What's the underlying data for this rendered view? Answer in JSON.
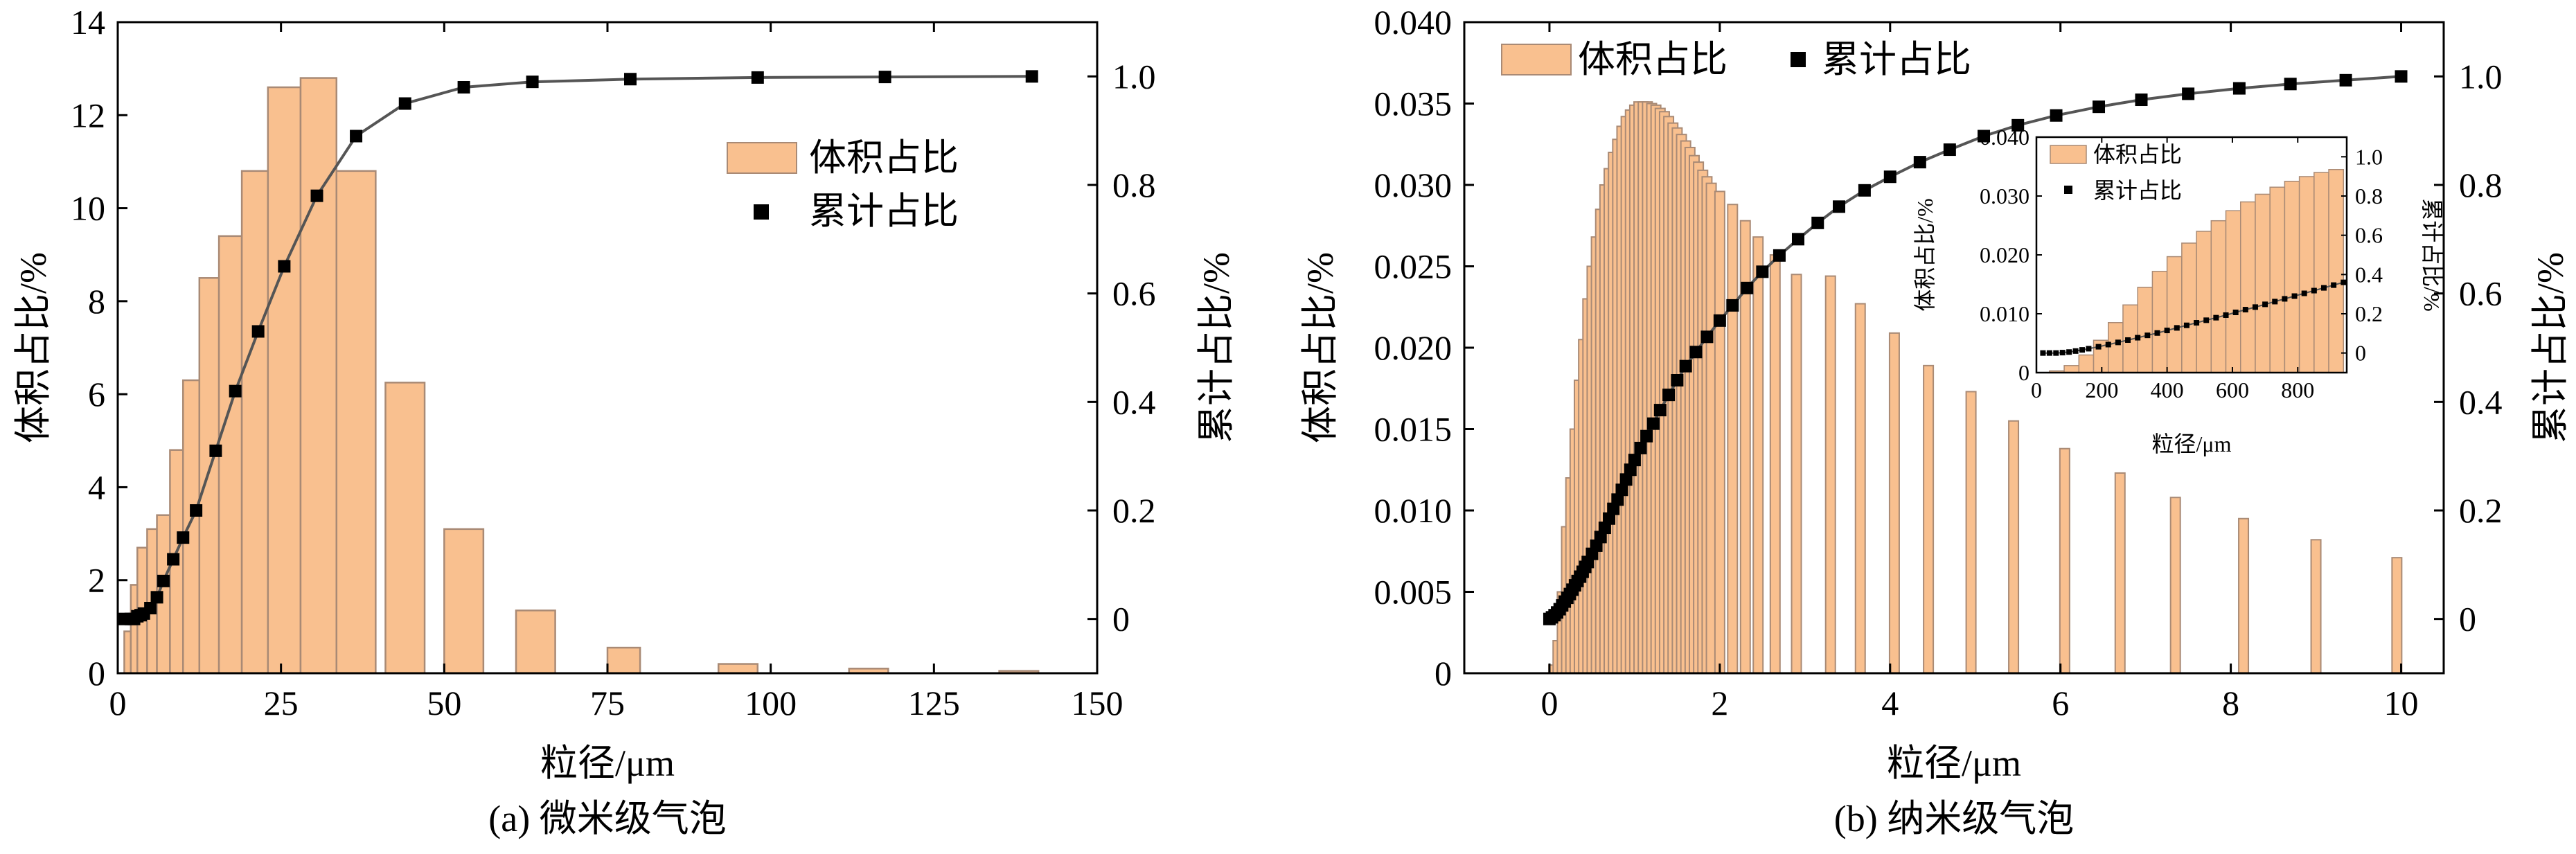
{
  "colors": {
    "bar_fill": "#f9c08f",
    "bar_stroke": "#a98a75",
    "line": "#555555",
    "marker": "#000000",
    "axis": "#000000"
  },
  "chart_data": [
    {
      "type": "bar",
      "caption": "(a) 微米级气泡",
      "xlabel": "粒径/μm",
      "ylabel": "体积占比/%",
      "y2label": "累计占比/%",
      "xlim": [
        0,
        150
      ],
      "ylim": [
        0,
        14
      ],
      "y2lim": [
        -0.1,
        1.1
      ],
      "xticks": [
        "0",
        "25",
        "50",
        "75",
        "100",
        "125",
        "150"
      ],
      "yticks": [
        "0",
        "2",
        "4",
        "6",
        "8",
        "10",
        "12",
        "14"
      ],
      "y2ticks": [
        "0",
        "0.2",
        "0.4",
        "0.6",
        "0.8",
        "1.0"
      ],
      "legend": {
        "bars": "体积占比",
        "markers": "累计占比"
      },
      "legend_position": "center-right",
      "bars": [
        {
          "x0": 1.0,
          "x1": 2.0,
          "value": 0.9
        },
        {
          "x0": 2.0,
          "x1": 3.0,
          "value": 1.9
        },
        {
          "x0": 3.0,
          "x1": 4.5,
          "value": 2.7
        },
        {
          "x0": 4.5,
          "x1": 6.0,
          "value": 3.1
        },
        {
          "x0": 6.0,
          "x1": 8.0,
          "value": 3.4
        },
        {
          "x0": 8.0,
          "x1": 10.0,
          "value": 4.8
        },
        {
          "x0": 10.0,
          "x1": 12.5,
          "value": 6.3
        },
        {
          "x0": 12.5,
          "x1": 15.5,
          "value": 8.5
        },
        {
          "x0": 15.5,
          "x1": 19.0,
          "value": 9.4
        },
        {
          "x0": 19.0,
          "x1": 23.0,
          "value": 10.8
        },
        {
          "x0": 23.0,
          "x1": 28.0,
          "value": 12.6
        },
        {
          "x0": 28.0,
          "x1": 33.5,
          "value": 12.8
        },
        {
          "x0": 33.5,
          "x1": 39.5,
          "value": 10.8
        },
        {
          "x0": 41.0,
          "x1": 47.0,
          "value": 6.25
        },
        {
          "x0": 50.0,
          "x1": 56.0,
          "value": 3.1
        },
        {
          "x0": 61.0,
          "x1": 67.0,
          "value": 1.35
        },
        {
          "x0": 75.0,
          "x1": 80.0,
          "value": 0.55
        },
        {
          "x0": 92.0,
          "x1": 98.0,
          "value": 0.2
        },
        {
          "x0": 112.0,
          "x1": 118.0,
          "value": 0.1
        },
        {
          "x0": 135.0,
          "x1": 141.0,
          "value": 0.05
        }
      ],
      "cumulative": {
        "x": [
          1.0,
          2.0,
          2.5,
          3.0,
          3.5,
          4.0,
          5.0,
          6.0,
          7.0,
          8.5,
          10.0,
          12.0,
          15.0,
          18.0,
          21.5,
          25.5,
          30.5,
          36.5,
          44.0,
          53.0,
          63.5,
          78.5,
          98.0,
          117.5,
          140.0
        ],
        "y": [
          0.0,
          0.0,
          0.0,
          0.005,
          0.007,
          0.01,
          0.02,
          0.04,
          0.07,
          0.11,
          0.15,
          0.2,
          0.31,
          0.42,
          0.53,
          0.65,
          0.78,
          0.89,
          0.95,
          0.98,
          0.99,
          0.995,
          0.998,
          0.999,
          1.0
        ]
      }
    },
    {
      "type": "bar",
      "caption": "(b) 纳米级气泡",
      "xlabel": "粒径/μm",
      "ylabel": "体积占比/%",
      "y2label": "累计占比/%",
      "xlim": [
        -1,
        10.5
      ],
      "ylim": [
        0,
        0.04
      ],
      "y2lim": [
        -0.1,
        1.1
      ],
      "xticks": [
        "0",
        "2",
        "4",
        "6",
        "8",
        "10"
      ],
      "yticks": [
        "0",
        "0.005",
        "0.010",
        "0.015",
        "0.020",
        "0.025",
        "0.030",
        "0.035",
        "0.040"
      ],
      "y2ticks": [
        "0",
        "0.2",
        "0.4",
        "0.6",
        "0.8",
        "1.0"
      ],
      "legend": {
        "bars": "体积占比",
        "markers": "累计占比"
      },
      "legend_position": "top-left",
      "bars": [
        {
          "x": 0.05,
          "value": 0.0005
        },
        {
          "x": 0.1,
          "value": 0.002
        },
        {
          "x": 0.15,
          "value": 0.005
        },
        {
          "x": 0.2,
          "value": 0.009
        },
        {
          "x": 0.25,
          "value": 0.012
        },
        {
          "x": 0.3,
          "value": 0.015
        },
        {
          "x": 0.35,
          "value": 0.018
        },
        {
          "x": 0.4,
          "value": 0.0205
        },
        {
          "x": 0.45,
          "value": 0.023
        },
        {
          "x": 0.5,
          "value": 0.025
        },
        {
          "x": 0.55,
          "value": 0.0268
        },
        {
          "x": 0.6,
          "value": 0.0285
        },
        {
          "x": 0.65,
          "value": 0.03
        },
        {
          "x": 0.7,
          "value": 0.031
        },
        {
          "x": 0.75,
          "value": 0.032
        },
        {
          "x": 0.8,
          "value": 0.0328
        },
        {
          "x": 0.85,
          "value": 0.0336
        },
        {
          "x": 0.9,
          "value": 0.0342
        },
        {
          "x": 0.95,
          "value": 0.0346
        },
        {
          "x": 1.0,
          "value": 0.0349
        },
        {
          "x": 1.05,
          "value": 0.0351
        },
        {
          "x": 1.1,
          "value": 0.0351
        },
        {
          "x": 1.15,
          "value": 0.0351
        },
        {
          "x": 1.2,
          "value": 0.035
        },
        {
          "x": 1.25,
          "value": 0.0349
        },
        {
          "x": 1.3,
          "value": 0.0347
        },
        {
          "x": 1.35,
          "value": 0.0345
        },
        {
          "x": 1.4,
          "value": 0.0342
        },
        {
          "x": 1.45,
          "value": 0.0338
        },
        {
          "x": 1.5,
          "value": 0.0335
        },
        {
          "x": 1.55,
          "value": 0.0331
        },
        {
          "x": 1.6,
          "value": 0.0327
        },
        {
          "x": 1.65,
          "value": 0.0323
        },
        {
          "x": 1.7,
          "value": 0.0318
        },
        {
          "x": 1.75,
          "value": 0.0314
        },
        {
          "x": 1.8,
          "value": 0.0309
        },
        {
          "x": 1.85,
          "value": 0.0305
        },
        {
          "x": 1.9,
          "value": 0.0301
        },
        {
          "x": 2.0,
          "value": 0.0296
        },
        {
          "x": 2.15,
          "value": 0.0288
        },
        {
          "x": 2.3,
          "value": 0.0278
        },
        {
          "x": 2.45,
          "value": 0.0268
        },
        {
          "x": 2.65,
          "value": 0.0257
        },
        {
          "x": 2.9,
          "value": 0.0245
        },
        {
          "x": 3.3,
          "value": 0.0244
        },
        {
          "x": 3.65,
          "value": 0.0227
        },
        {
          "x": 4.05,
          "value": 0.0209
        },
        {
          "x": 4.45,
          "value": 0.0189
        },
        {
          "x": 4.95,
          "value": 0.0173
        },
        {
          "x": 5.45,
          "value": 0.0155
        },
        {
          "x": 6.05,
          "value": 0.0138
        },
        {
          "x": 6.7,
          "value": 0.0123
        },
        {
          "x": 7.35,
          "value": 0.0108
        },
        {
          "x": 8.15,
          "value": 0.0095
        },
        {
          "x": 9.0,
          "value": 0.0082
        },
        {
          "x": 9.95,
          "value": 0.0071
        }
      ],
      "cumulative": {
        "x": [
          0.0,
          0.03,
          0.06,
          0.09,
          0.12,
          0.15,
          0.18,
          0.21,
          0.24,
          0.27,
          0.3,
          0.33,
          0.36,
          0.39,
          0.42,
          0.45,
          0.5,
          0.55,
          0.6,
          0.65,
          0.7,
          0.75,
          0.8,
          0.85,
          0.9,
          0.95,
          1.0,
          1.07,
          1.14,
          1.22,
          1.3,
          1.4,
          1.5,
          1.6,
          1.72,
          1.85,
          2.0,
          2.15,
          2.32,
          2.5,
          2.7,
          2.92,
          3.15,
          3.4,
          3.7,
          4.0,
          4.35,
          4.7,
          5.1,
          5.5,
          5.95,
          6.45,
          6.95,
          7.5,
          8.1,
          8.7,
          9.35,
          10.0
        ],
        "y": [
          0.0,
          0.003,
          0.007,
          0.012,
          0.018,
          0.025,
          0.032,
          0.039,
          0.046,
          0.054,
          0.062,
          0.07,
          0.078,
          0.087,
          0.096,
          0.105,
          0.12,
          0.135,
          0.151,
          0.168,
          0.185,
          0.203,
          0.22,
          0.238,
          0.257,
          0.275,
          0.293,
          0.315,
          0.337,
          0.36,
          0.385,
          0.413,
          0.44,
          0.466,
          0.492,
          0.52,
          0.55,
          0.578,
          0.61,
          0.64,
          0.67,
          0.7,
          0.73,
          0.76,
          0.79,
          0.815,
          0.842,
          0.865,
          0.89,
          0.91,
          0.928,
          0.944,
          0.957,
          0.968,
          0.978,
          0.986,
          0.993,
          1.0
        ]
      },
      "inset": {
        "xlabel": "粒径/μm",
        "ylabel": "体积占比/%",
        "y2label": "累计占比/%",
        "xlim": [
          0,
          950
        ],
        "ylim": [
          0,
          0.04
        ],
        "y2lim": [
          -0.1,
          1.1
        ],
        "xticks": [
          "0",
          "200",
          "400",
          "600",
          "800"
        ],
        "yticks": [
          "0",
          "0.010",
          "0.020",
          "0.030",
          "0.040"
        ],
        "y2ticks": [
          "0",
          "0.2",
          "0.4",
          "0.6",
          "0.8",
          "1.0"
        ],
        "legend": {
          "bars": "体积占比",
          "markers": "累计占比"
        },
        "bars": [
          {
            "x0": 40,
            "x1": 85,
            "value": 0.0003
          },
          {
            "x0": 85,
            "x1": 130,
            "value": 0.0012
          },
          {
            "x0": 130,
            "x1": 175,
            "value": 0.003
          },
          {
            "x0": 175,
            "x1": 220,
            "value": 0.0055
          },
          {
            "x0": 220,
            "x1": 265,
            "value": 0.0085
          },
          {
            "x0": 265,
            "x1": 310,
            "value": 0.0115
          },
          {
            "x0": 310,
            "x1": 355,
            "value": 0.0145
          },
          {
            "x0": 355,
            "x1": 400,
            "value": 0.0172
          },
          {
            "x0": 400,
            "x1": 445,
            "value": 0.0197
          },
          {
            "x0": 445,
            "x1": 490,
            "value": 0.022
          },
          {
            "x0": 490,
            "x1": 535,
            "value": 0.024
          },
          {
            "x0": 535,
            "x1": 580,
            "value": 0.0258
          },
          {
            "x0": 580,
            "x1": 625,
            "value": 0.0275
          },
          {
            "x0": 625,
            "x1": 670,
            "value": 0.029
          },
          {
            "x0": 670,
            "x1": 715,
            "value": 0.0303
          },
          {
            "x0": 715,
            "x1": 760,
            "value": 0.0315
          },
          {
            "x0": 760,
            "x1": 805,
            "value": 0.0325
          },
          {
            "x0": 805,
            "x1": 850,
            "value": 0.0333
          },
          {
            "x0": 850,
            "x1": 895,
            "value": 0.034
          },
          {
            "x0": 895,
            "x1": 940,
            "value": 0.0345
          }
        ],
        "cumulative": {
          "x": [
            20,
            40,
            60,
            80,
            100,
            120,
            140,
            160,
            190,
            220,
            250,
            280,
            310,
            340,
            370,
            400,
            430,
            460,
            490,
            520,
            550,
            580,
            610,
            640,
            670,
            700,
            730,
            760,
            790,
            820,
            850,
            880,
            910,
            940
          ],
          "y": [
            0.0,
            0.0,
            0.0,
            0.002,
            0.005,
            0.01,
            0.016,
            0.022,
            0.032,
            0.043,
            0.054,
            0.066,
            0.078,
            0.09,
            0.102,
            0.115,
            0.128,
            0.141,
            0.154,
            0.167,
            0.18,
            0.193,
            0.207,
            0.221,
            0.234,
            0.248,
            0.262,
            0.276,
            0.29,
            0.304,
            0.318,
            0.332,
            0.346,
            0.36
          ]
        }
      }
    }
  ]
}
